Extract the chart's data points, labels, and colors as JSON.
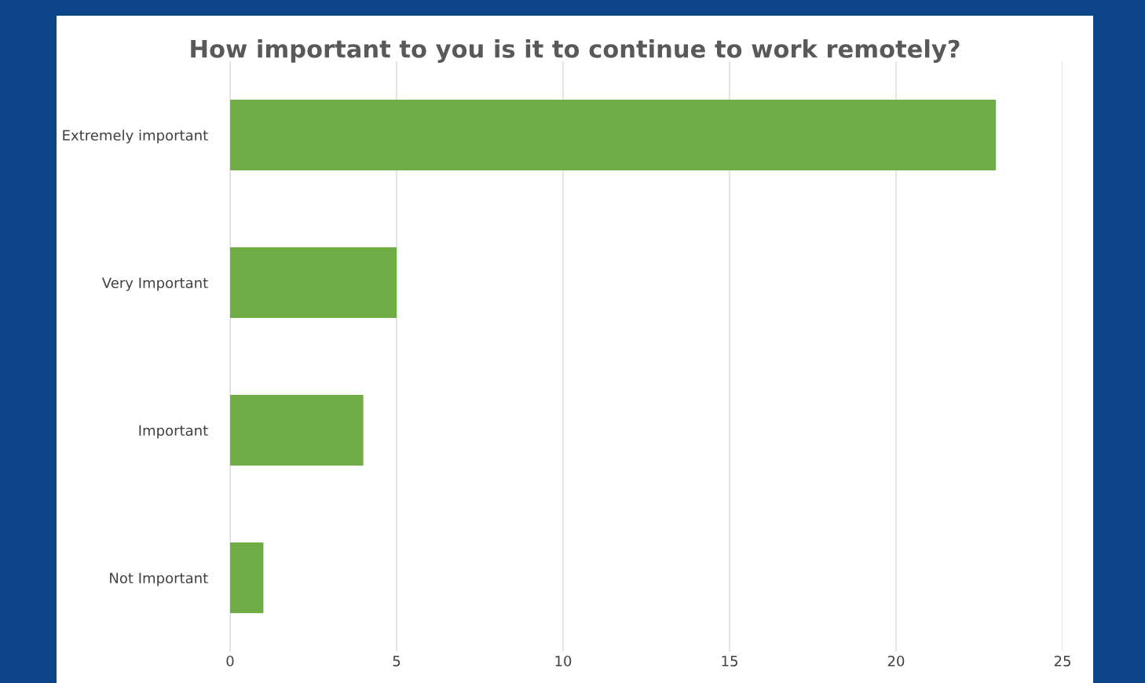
{
  "chart_data": {
    "type": "bar",
    "orientation": "horizontal",
    "title": "How important to you is it to continue to work remotely?",
    "categories": [
      "Extremely important",
      "Very Important",
      "Important",
      "Not Important"
    ],
    "values": [
      23,
      5,
      4,
      1
    ],
    "color": "#70ad47",
    "xlim": [
      0,
      25
    ],
    "xticks": [
      0,
      5,
      10,
      15,
      20,
      25
    ],
    "grid": "x",
    "legend": false
  }
}
